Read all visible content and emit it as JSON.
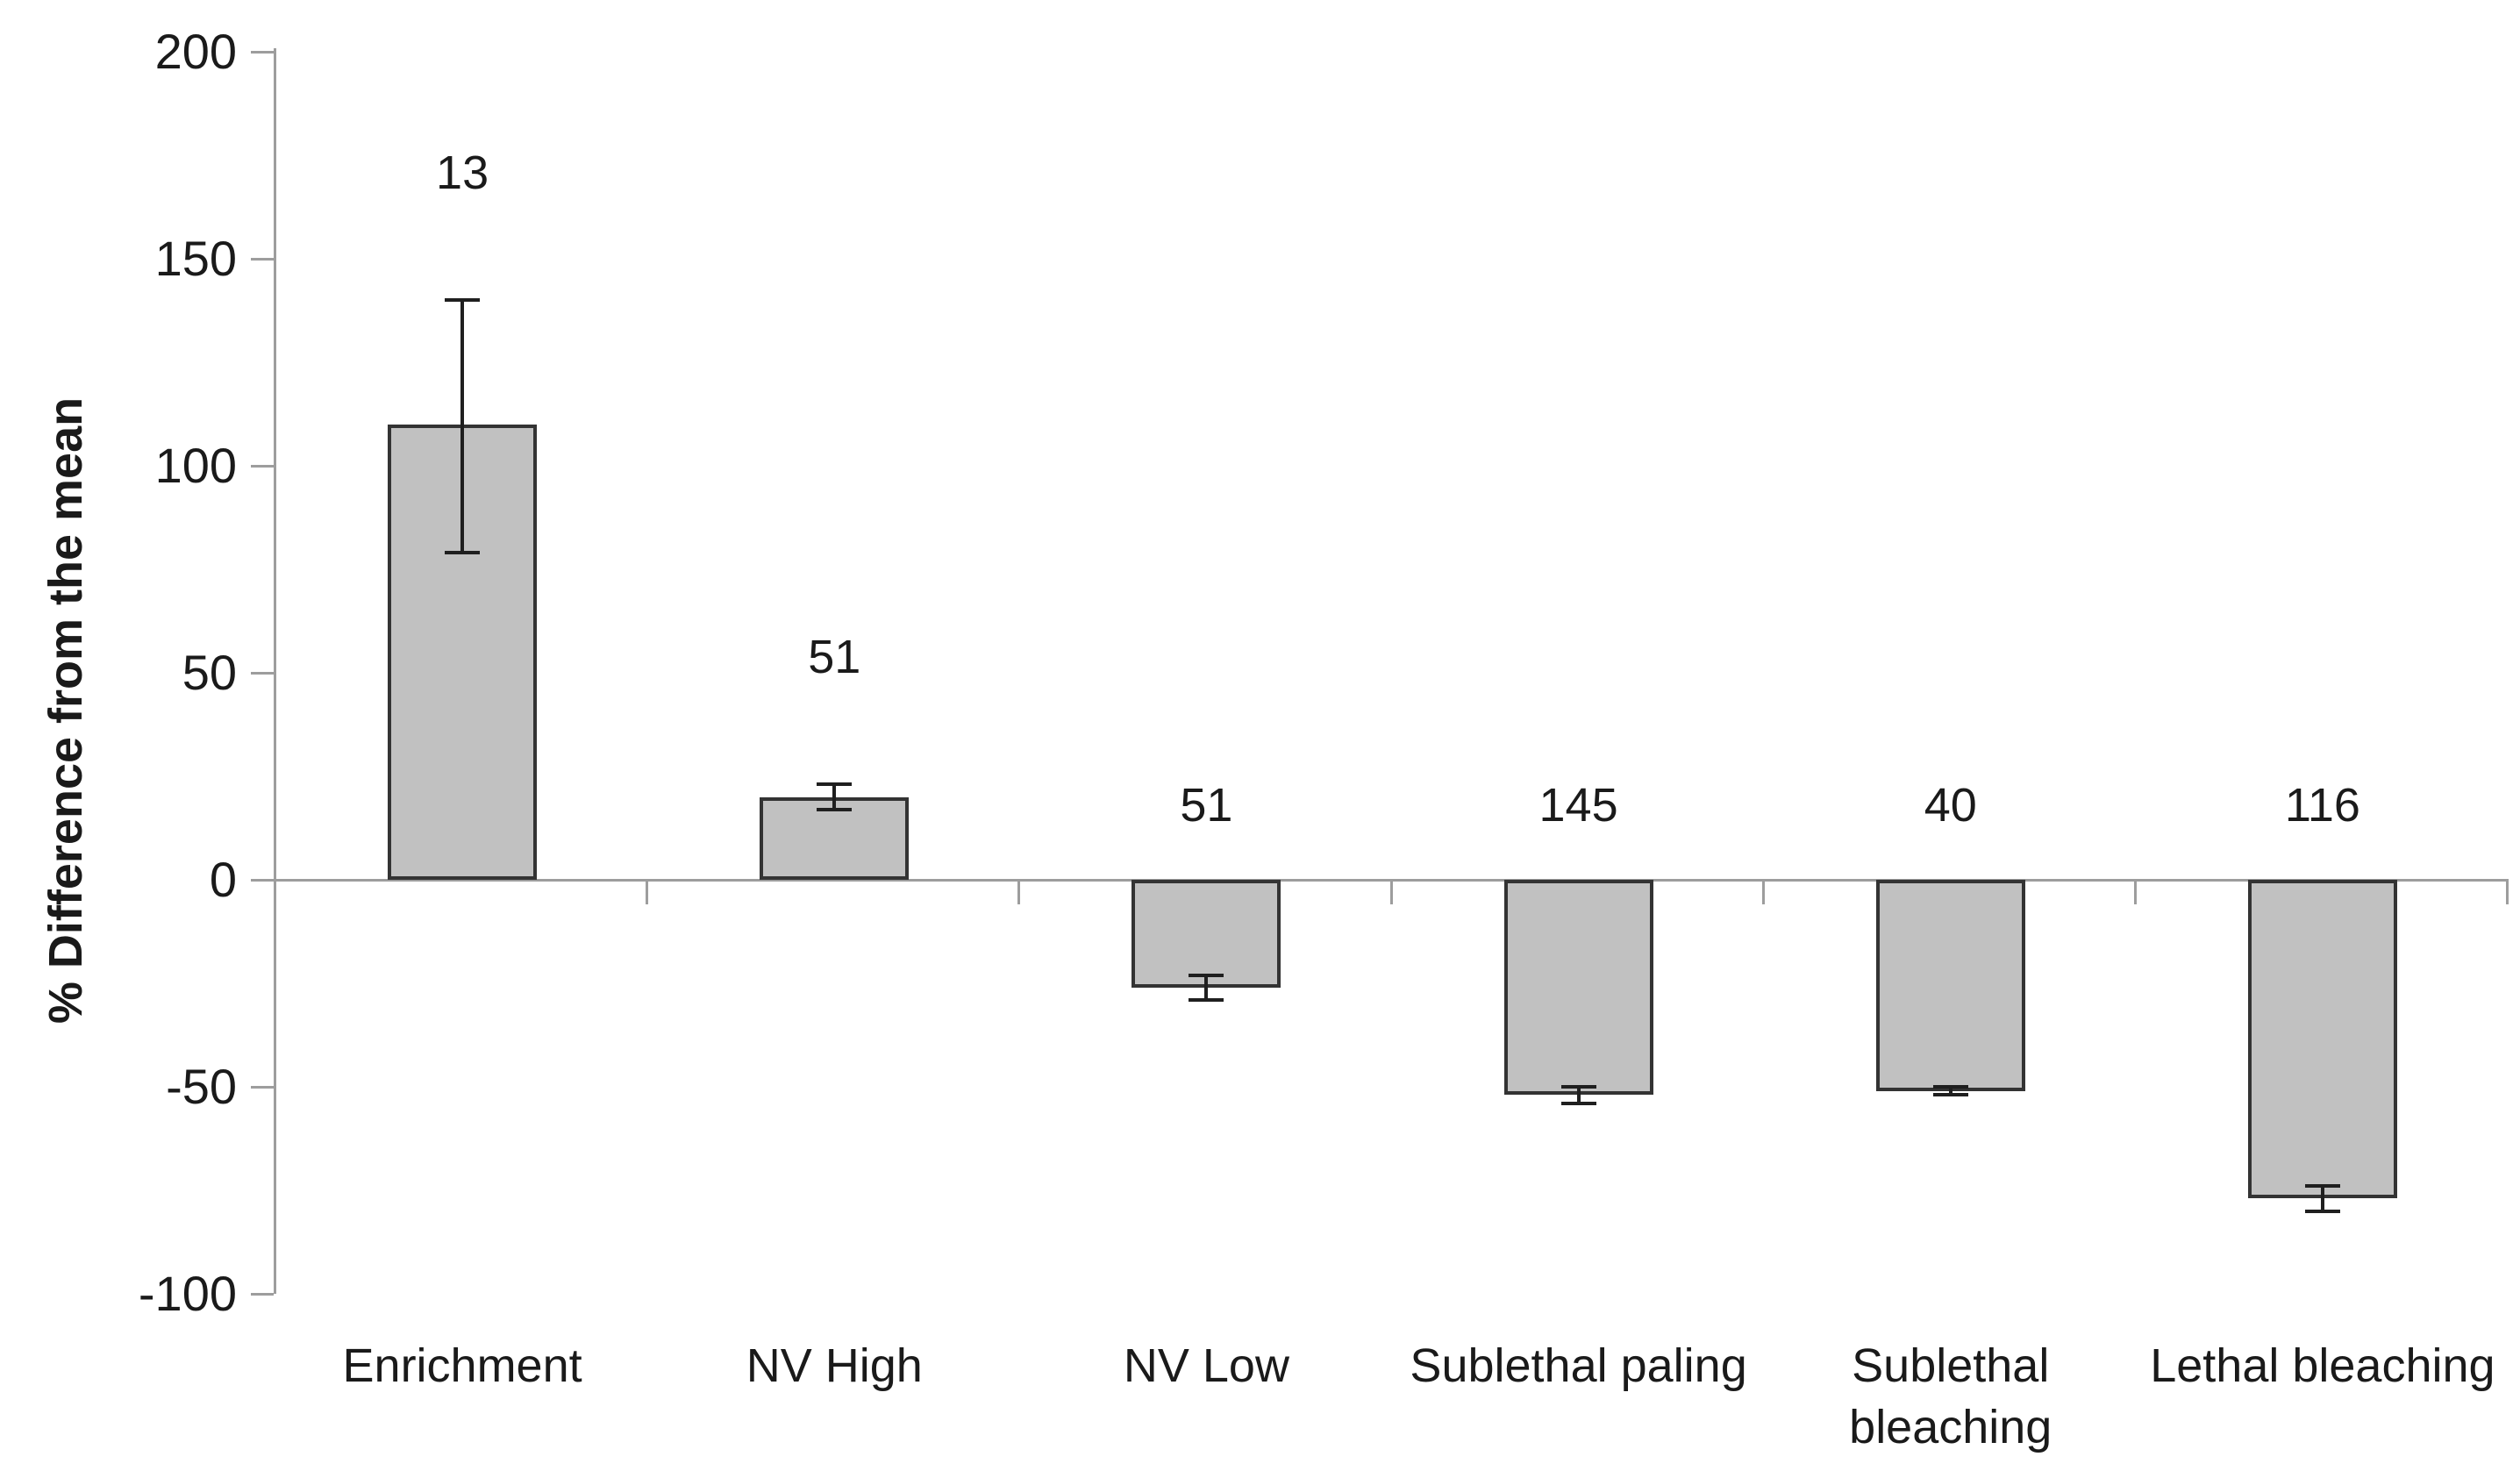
{
  "chart_data": {
    "type": "bar",
    "title": "",
    "ylabel": "% Difference from the mean",
    "xlabel": "",
    "ylim": [
      -100,
      200
    ],
    "yticks": [
      200,
      150,
      100,
      50,
      0,
      -50,
      -100
    ],
    "ytick_interval": 50,
    "grid": "off",
    "legend": "none",
    "categories": [
      "Enrichment",
      "NV High",
      "NV Low",
      "Sublethal paling",
      "Sublethal bleaching",
      "Lethal bleaching"
    ],
    "category_label_lines": [
      [
        "Enrichment"
      ],
      [
        "NV High"
      ],
      [
        "NV Low"
      ],
      [
        "Sublethal paling"
      ],
      [
        "Sublethal",
        "bleaching"
      ],
      [
        "Lethal bleaching"
      ]
    ],
    "series": [
      {
        "name": "% difference from the mean",
        "values": [
          110,
          20,
          -26,
          -52,
          -51,
          -77
        ]
      }
    ],
    "error_bars": {
      "high": [
        140,
        23,
        -23,
        -50,
        -50,
        -74
      ],
      "low": [
        79,
        17,
        -29,
        -54,
        -52,
        -80
      ]
    },
    "point_labels": [
      "13",
      "51",
      "51",
      "145",
      "40",
      "116"
    ],
    "colors": {
      "bar_fill": "#c1c1c1",
      "bar_border": "#333333",
      "error_bar": "#1f1f1f",
      "axis_line": "#9d9d9d",
      "text": "#1a1a1a",
      "background": "#ffffff"
    }
  }
}
